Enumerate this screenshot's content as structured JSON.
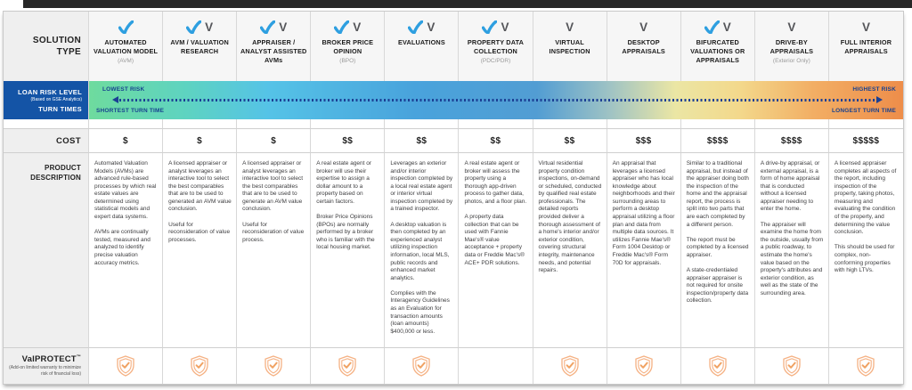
{
  "table": {
    "corner": {
      "solution_type": "SOLUTION TYPE"
    },
    "risk_row": {
      "label_title": "LOAN RISK LEVEL",
      "label_sub": "(Based on GSE Analytics)",
      "label_title2": "TURN TIMES",
      "lowest_risk": "LOWEST RISK",
      "shortest_turn_time": "SHORTEST TURN TIME",
      "highest_risk": "HIGHEST RISK",
      "longest_turn_time": "LONGEST TURN TIME"
    },
    "cost_label": "COST",
    "description_label": "PRODUCT DESCRIPTION",
    "valprotect_row": {
      "label": "ValPROTECT",
      "tm": "™",
      "sub": "(Add-on limited warranty to minimize risk of financial loss)"
    },
    "icon_glyphs": {
      "v_icon": "V"
    },
    "colors": {
      "label_blue": "#1454a6",
      "check_blue": "#2e9fe0",
      "v_gray": "#55565a",
      "shield_orange": "#f5b183",
      "risk_text_navy": "#17418f",
      "gradient_left_green": "#6edb9e",
      "gradient_mid_blue": "#49a3dc",
      "gradient_yellow": "#ebe6a4",
      "gradient_right_orange": "#ee8d4a"
    },
    "columns": [
      {
        "name": "AUTOMATED VALUATION MODEL",
        "sub": "(AVM)",
        "icons": [
          "check-icon"
        ],
        "cost": "$",
        "description": "Automated Valuation Models (AVMs) are advanced rule-based processes by which real estate values are determined using statistical models and expert data systems.\n\nAVMs are continually tested, measured and analyzed to identify precise valuation accuracy metrics.",
        "valprotect": true
      },
      {
        "name": "AVM / VALUATION RESEARCH",
        "sub": "",
        "icons": [
          "check-icon",
          "v-icon"
        ],
        "cost": "$",
        "description": "A licensed appraiser or analyst leverages an interactive tool to select the best comparables that are to be used to generated an AVM value conclusion.\n\nUseful for reconsideration of value processes.",
        "valprotect": true
      },
      {
        "name": "APPRAISER / ANALYST ASSISTED AVMs",
        "sub": "",
        "icons": [
          "check-icon",
          "v-icon"
        ],
        "cost": "$",
        "description": "A licensed appraiser or analyst leverages an interactive tool to select the best comparables that are to be used to generate an AVM value conclusion.\n\nUseful for reconsideration of value process.",
        "valprotect": true
      },
      {
        "name": "BROKER PRICE OPINION",
        "sub": "(BPO)",
        "icons": [
          "check-icon",
          "v-icon"
        ],
        "cost": "$$",
        "description": "A real estate agent or broker will use their expertise to assign a dollar amount to a property based on certain factors.\n\nBroker Price Opinions (BPOs) are normally performed by a broker who is familiar with the local housing market.",
        "valprotect": true
      },
      {
        "name": "EVALUATIONS",
        "sub": "",
        "icons": [
          "check-icon",
          "v-icon"
        ],
        "cost": "$$",
        "description": "Leverages an exterior and/or interior inspection completed by a local real estate agent or interior virtual inspection completed by a trained inspector.\n\nA desktop valuation is then completed by an experienced analyst utilizing inspection information, local MLS, public records and enhanced market analytics.\n\nComplies with the Interagency Guidelines as an Evaluation for transaction amounts (loan amounts) $400,000 or less.",
        "valprotect": true
      },
      {
        "name": "PROPERTY DATA COLLECTION",
        "sub": "(PDC/PDR)",
        "icons": [
          "check-icon",
          "v-icon"
        ],
        "cost": "$$",
        "description": "A real estate agent or broker will assess the property using a thorough app-driven process to gather data, photos, and a floor plan.\n\nA property data collection that can be used with Fannie Mae's® value acceptance + property data or Freddie Mac's® ACE+ PDR solutions.",
        "valprotect": false
      },
      {
        "name": "VIRTUAL INSPECTION",
        "sub": "",
        "icons": [
          "v-icon"
        ],
        "cost": "$$",
        "description": "Virtual residential property condition inspections, on-demand or scheduled, conducted by qualified real estate professionals. The detailed reports provided deliver a thorough assessment of a home's interior and/or exterior condition, covering structural integrity, maintenance needs, and potential repairs.",
        "valprotect": true
      },
      {
        "name": "DESKTOP APPRAISALS",
        "sub": "",
        "icons": [
          "v-icon"
        ],
        "cost": "$$$",
        "description": "An appraisal that leverages a licensed appraiser who has local knowledge about neighborhoods and their surrounding areas to perform a desktop appraisal utilizing a floor plan and data from multiple data sources. It utilizes Fannie Mae's® Form 1004 Desktop or Freddie Mac's® Form 70D for appraisals.",
        "valprotect": true
      },
      {
        "name": "BIFURCATED VALUATIONS OR APPRAISALS",
        "sub": "",
        "icons": [
          "check-icon",
          "v-icon"
        ],
        "cost": "$$$$",
        "description": "Similar to a traditional appraisal, but instead of the appraiser doing both the inspection of the home and the appraisal report, the process is split into two parts that are each completed by a different person.\n\nThe report must be completed by a licensed appraiser.\n\nA state-credentialed appraiser appraiser is not required for onsite inspection/property data collection.",
        "valprotect": true
      },
      {
        "name": "DRIVE-BY APPRAISALS",
        "sub": "(Exterior Only)",
        "icons": [
          "v-icon"
        ],
        "cost": "$$$$",
        "description": "A drive-by appraisal, or external appraisal, is a form of home appraisal that is conducted without a licensed appraiser needing to enter the home.\n\nThe appraiser will examine the home from the outside, usually from a public roadway, to estimate the home's value based on the property's attributes and exterior condition, as well as the state of the surrounding area.",
        "valprotect": true
      },
      {
        "name": "FULL INTERIOR APPRAISALS",
        "sub": "",
        "icons": [
          "v-icon"
        ],
        "cost": "$$$$$",
        "description": "A licensed appraiser completes all aspects of the report, including inspection of the property, taking photos, measuring and evaluating the condition of the property, and determining the value conclusion.\n\nThis should be used for complex, non-conforming properties with high LTVs.",
        "valprotect": true
      }
    ]
  }
}
